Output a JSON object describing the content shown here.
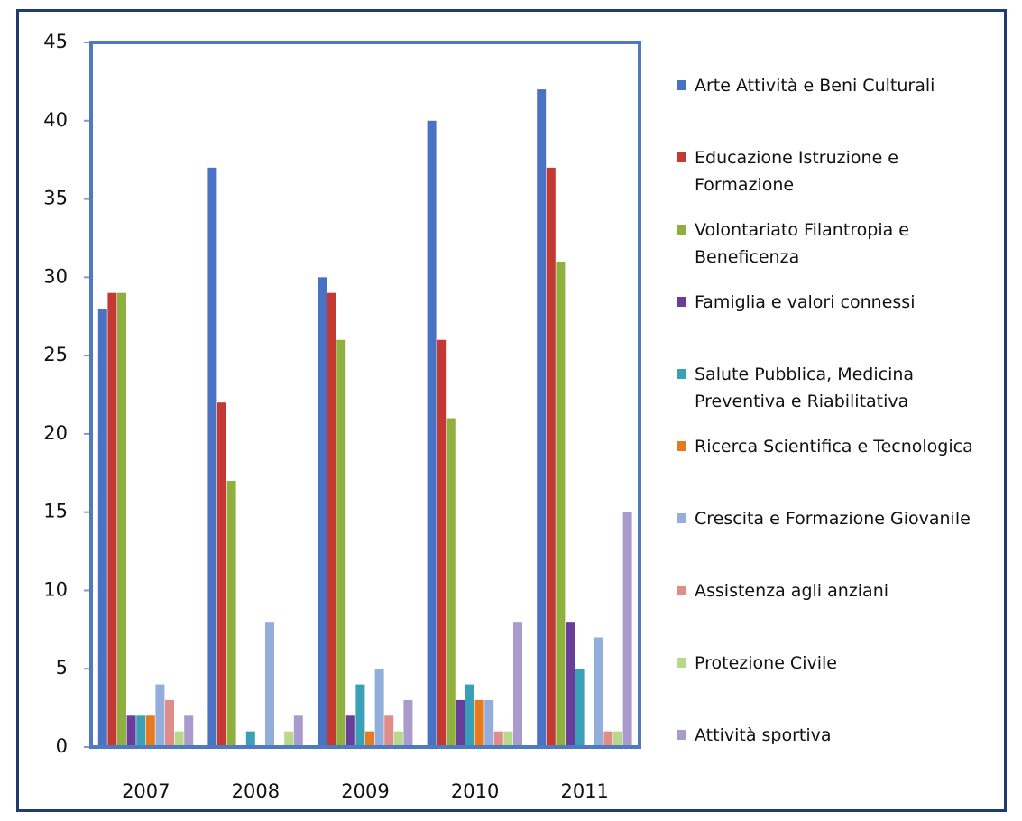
{
  "chart_data": {
    "type": "bar",
    "categories": [
      "2007",
      "2008",
      "2009",
      "2010",
      "2011"
    ],
    "series": [
      {
        "name": "Arte Attività e Beni Culturali",
        "color": "#4a72c4",
        "values": [
          28,
          37,
          30,
          40,
          42
        ]
      },
      {
        "name": "Educazione Istruzione e Formazione",
        "color": "#c43a32",
        "values": [
          29,
          22,
          29,
          26,
          37
        ]
      },
      {
        "name": "Volontariato Filantropia e Beneficenza",
        "color": "#8fb03e",
        "values": [
          29,
          17,
          26,
          21,
          31
        ]
      },
      {
        "name": "Famiglia e valori connessi",
        "color": "#6a3d9a",
        "values": [
          2,
          0,
          2,
          3,
          8
        ]
      },
      {
        "name": "Salute Pubblica, Medicina Preventiva e Riabilitativa",
        "color": "#3aa0b8",
        "values": [
          2,
          1,
          4,
          4,
          5
        ]
      },
      {
        "name": "Ricerca Scientifica e Tecnologica",
        "color": "#e87a1e",
        "values": [
          2,
          0,
          1,
          3,
          0
        ]
      },
      {
        "name": "Crescita e Formazione Giovanile",
        "color": "#94aedb",
        "values": [
          4,
          8,
          5,
          3,
          7
        ]
      },
      {
        "name": "Assistenza agli anziani",
        "color": "#e08d8a",
        "values": [
          3,
          0,
          2,
          1,
          1
        ]
      },
      {
        "name": "Protezione Civile",
        "color": "#b8d98a",
        "values": [
          1,
          1,
          1,
          1,
          1
        ]
      },
      {
        "name": "Attività sportiva",
        "color": "#ab9bcc",
        "values": [
          2,
          2,
          3,
          8,
          15
        ]
      }
    ],
    "ylim": [
      0,
      45
    ],
    "yticks": [
      0,
      5,
      10,
      15,
      20,
      25,
      30,
      35,
      40,
      45
    ],
    "grid": false
  }
}
